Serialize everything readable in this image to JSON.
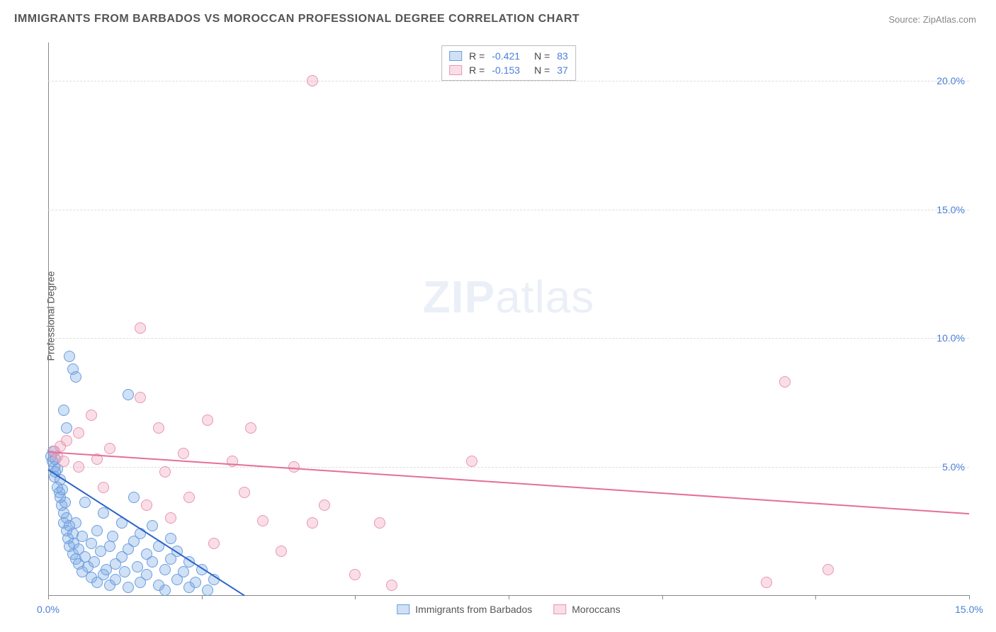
{
  "title": "IMMIGRANTS FROM BARBADOS VS MOROCCAN PROFESSIONAL DEGREE CORRELATION CHART",
  "source_label": "Source: ",
  "source_name": "ZipAtlas.com",
  "y_axis_label": "Professional Degree",
  "watermark": {
    "bold": "ZIP",
    "light": "atlas"
  },
  "chart": {
    "type": "scatter",
    "background_color": "#ffffff",
    "grid_color": "#dddddd",
    "axis_color": "#888888",
    "tick_label_color": "#4a7fd8",
    "xlim": [
      0,
      15
    ],
    "ylim": [
      0,
      21.5
    ],
    "xticks": [
      0,
      2.5,
      5,
      7.5,
      10,
      12.5,
      15
    ],
    "xtick_labels_visible": {
      "0": "0.0%",
      "15": "15.0%"
    },
    "yticks": [
      5,
      10,
      15,
      20
    ],
    "ytick_labels": {
      "5": "5.0%",
      "10": "10.0%",
      "15": "15.0%",
      "20": "20.0%"
    },
    "marker_radius": 8,
    "marker_border_width": 1,
    "series": [
      {
        "id": "barbados",
        "label": "Immigrants from Barbados",
        "fill_color": "rgba(120,165,225,0.35)",
        "stroke_color": "#6a9de0",
        "r_value": "-0.421",
        "n_value": "83",
        "trend": {
          "x1": 0,
          "y1": 4.9,
          "x2": 3.2,
          "y2": 0,
          "color": "#2b62c9",
          "width": 2
        },
        "points": [
          [
            0.05,
            5.4
          ],
          [
            0.07,
            5.2
          ],
          [
            0.08,
            5.6
          ],
          [
            0.1,
            5.0
          ],
          [
            0.1,
            4.6
          ],
          [
            0.12,
            4.8
          ],
          [
            0.12,
            5.3
          ],
          [
            0.15,
            4.2
          ],
          [
            0.15,
            4.9
          ],
          [
            0.18,
            4.0
          ],
          [
            0.2,
            4.5
          ],
          [
            0.2,
            3.8
          ],
          [
            0.22,
            3.5
          ],
          [
            0.23,
            4.1
          ],
          [
            0.25,
            3.2
          ],
          [
            0.25,
            2.8
          ],
          [
            0.28,
            3.6
          ],
          [
            0.3,
            2.5
          ],
          [
            0.3,
            3.0
          ],
          [
            0.32,
            2.2
          ],
          [
            0.35,
            2.7
          ],
          [
            0.35,
            1.9
          ],
          [
            0.4,
            2.4
          ],
          [
            0.4,
            1.6
          ],
          [
            0.42,
            2.0
          ],
          [
            0.45,
            1.4
          ],
          [
            0.45,
            2.8
          ],
          [
            0.5,
            1.8
          ],
          [
            0.5,
            1.2
          ],
          [
            0.55,
            2.3
          ],
          [
            0.55,
            0.9
          ],
          [
            0.6,
            1.5
          ],
          [
            0.6,
            3.6
          ],
          [
            0.65,
            1.1
          ],
          [
            0.7,
            2.0
          ],
          [
            0.7,
            0.7
          ],
          [
            0.75,
            1.3
          ],
          [
            0.8,
            2.5
          ],
          [
            0.8,
            0.5
          ],
          [
            0.85,
            1.7
          ],
          [
            0.9,
            0.8
          ],
          [
            0.9,
            3.2
          ],
          [
            0.95,
            1.0
          ],
          [
            1.0,
            1.9
          ],
          [
            1.0,
            0.4
          ],
          [
            1.05,
            2.3
          ],
          [
            1.1,
            1.2
          ],
          [
            1.1,
            0.6
          ],
          [
            1.2,
            1.5
          ],
          [
            1.2,
            2.8
          ],
          [
            1.25,
            0.9
          ],
          [
            1.3,
            1.8
          ],
          [
            1.3,
            0.3
          ],
          [
            1.4,
            2.1
          ],
          [
            1.4,
            3.8
          ],
          [
            1.45,
            1.1
          ],
          [
            1.5,
            0.5
          ],
          [
            1.5,
            2.4
          ],
          [
            1.6,
            1.6
          ],
          [
            1.6,
            0.8
          ],
          [
            1.7,
            1.3
          ],
          [
            1.7,
            2.7
          ],
          [
            1.8,
            0.4
          ],
          [
            1.8,
            1.9
          ],
          [
            1.9,
            1.0
          ],
          [
            1.9,
            0.2
          ],
          [
            2.0,
            1.4
          ],
          [
            2.0,
            2.2
          ],
          [
            2.1,
            0.6
          ],
          [
            2.1,
            1.7
          ],
          [
            2.2,
            0.9
          ],
          [
            2.3,
            0.3
          ],
          [
            2.3,
            1.3
          ],
          [
            2.4,
            0.5
          ],
          [
            2.5,
            1.0
          ],
          [
            2.6,
            0.2
          ],
          [
            2.7,
            0.6
          ],
          [
            0.35,
            9.3
          ],
          [
            0.4,
            8.8
          ],
          [
            0.45,
            8.5
          ],
          [
            0.25,
            7.2
          ],
          [
            0.3,
            6.5
          ],
          [
            1.3,
            7.8
          ]
        ]
      },
      {
        "id": "moroccans",
        "label": "Moroccans",
        "fill_color": "rgba(240,160,185,0.35)",
        "stroke_color": "#e896b0",
        "r_value": "-0.153",
        "n_value": "37",
        "trend": {
          "x1": 0,
          "y1": 5.6,
          "x2": 15,
          "y2": 3.2,
          "color": "#e56f96",
          "width": 2
        },
        "points": [
          [
            0.1,
            5.6
          ],
          [
            0.15,
            5.4
          ],
          [
            0.2,
            5.8
          ],
          [
            0.25,
            5.2
          ],
          [
            0.3,
            6.0
          ],
          [
            0.5,
            6.3
          ],
          [
            0.5,
            5.0
          ],
          [
            0.7,
            7.0
          ],
          [
            0.8,
            5.3
          ],
          [
            0.9,
            4.2
          ],
          [
            1.0,
            5.7
          ],
          [
            1.5,
            7.7
          ],
          [
            1.5,
            10.4
          ],
          [
            1.6,
            3.5
          ],
          [
            1.8,
            6.5
          ],
          [
            1.9,
            4.8
          ],
          [
            2.0,
            3.0
          ],
          [
            2.2,
            5.5
          ],
          [
            2.3,
            3.8
          ],
          [
            2.6,
            6.8
          ],
          [
            2.7,
            2.0
          ],
          [
            3.0,
            5.2
          ],
          [
            3.2,
            4.0
          ],
          [
            3.3,
            6.5
          ],
          [
            3.5,
            2.9
          ],
          [
            3.8,
            1.7
          ],
          [
            4.0,
            5.0
          ],
          [
            4.3,
            2.8
          ],
          [
            4.5,
            3.5
          ],
          [
            5.0,
            0.8
          ],
          [
            5.4,
            2.8
          ],
          [
            5.6,
            0.4
          ],
          [
            4.3,
            20.0
          ],
          [
            6.9,
            5.2
          ],
          [
            11.7,
            0.5
          ],
          [
            12.0,
            8.3
          ],
          [
            12.7,
            1.0
          ]
        ]
      }
    ]
  },
  "legend_top_labels": {
    "r": "R =",
    "n": "N ="
  }
}
